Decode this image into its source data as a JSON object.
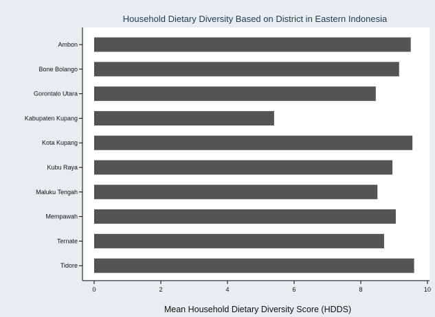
{
  "chart_data": {
    "type": "bar",
    "orientation": "horizontal",
    "title": "Household Dietary Diversity Based on District in Eastern Indonesia",
    "xlabel": "Mean Household Dietary Diversity Score (HDDS)",
    "ylabel": "",
    "categories": [
      "Ambon",
      "Bone Bolango",
      "Gorontalo Utara",
      "Kabupaten Kupang",
      "Kota Kupang",
      "Kubu Raya",
      "Maluku Tengah",
      "Mempawah",
      "Ternate",
      "Tidore"
    ],
    "values": [
      9.5,
      9.15,
      8.45,
      5.4,
      9.55,
      8.95,
      8.5,
      9.05,
      8.7,
      9.6
    ],
    "xlim": [
      0,
      10
    ],
    "xticks": [
      0,
      2,
      4,
      6,
      8,
      10
    ],
    "grid": false,
    "colors": {
      "bar": "#545454",
      "background": "#e8edf0",
      "plot_background": "#ffffff",
      "title": "#1f3a52"
    }
  }
}
